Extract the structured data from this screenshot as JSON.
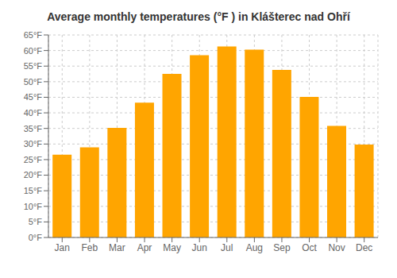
{
  "chart_data": {
    "type": "bar",
    "title": "Average monthly temperatures (°F ) in Klášterec nad Ohří",
    "categories": [
      "Jan",
      "Feb",
      "Mar",
      "Apr",
      "May",
      "Jun",
      "Jul",
      "Aug",
      "Sep",
      "Oct",
      "Nov",
      "Dec"
    ],
    "values": [
      26.6,
      28.9,
      35.2,
      43.3,
      52.5,
      58.5,
      61.3,
      60.3,
      53.8,
      45.1,
      35.8,
      29.8
    ],
    "color": "#FFA500",
    "ylim": [
      0,
      65
    ],
    "yticks": [
      {
        "value": 0,
        "label": "0°F"
      },
      {
        "value": 5,
        "label": "5°F"
      },
      {
        "value": 10,
        "label": "10°F"
      },
      {
        "value": 15,
        "label": "15°F"
      },
      {
        "value": 20,
        "label": "20°F"
      },
      {
        "value": 25,
        "label": "25°F"
      },
      {
        "value": 30,
        "label": "30°F"
      },
      {
        "value": 35,
        "label": "35°F"
      },
      {
        "value": 40,
        "label": "40°F"
      },
      {
        "value": 45,
        "label": "45°F"
      },
      {
        "value": 50,
        "label": "50°F"
      },
      {
        "value": 55,
        "label": "55°F"
      },
      {
        "value": 60,
        "label": "60°F"
      },
      {
        "value": 65,
        "label": "65°F"
      }
    ],
    "grid": true
  }
}
